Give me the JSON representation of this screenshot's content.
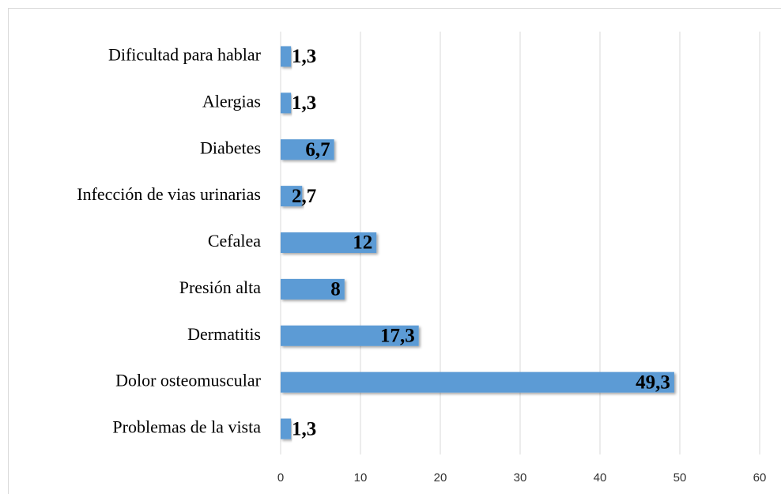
{
  "chart_data": {
    "type": "bar",
    "orientation": "horizontal",
    "categories": [
      "Dificultad para hablar",
      "Alergias",
      "Diabetes",
      "Infección de vias urinarias",
      "Cefalea",
      "Presión alta",
      "Dermatitis",
      "Dolor osteomuscular",
      "Problemas de la vista"
    ],
    "values": [
      1.3,
      1.3,
      6.7,
      2.7,
      12,
      8,
      17.3,
      49.3,
      1.3
    ],
    "value_labels": [
      "1,3",
      "1,3",
      "6,7",
      "2,7",
      "12",
      "8",
      "17,3",
      "49,3",
      "1,3"
    ],
    "color": "#5b9bd5",
    "xlim": [
      0,
      60
    ],
    "xticks": [
      0,
      10,
      20,
      30,
      40,
      50,
      60
    ],
    "grid": true
  }
}
